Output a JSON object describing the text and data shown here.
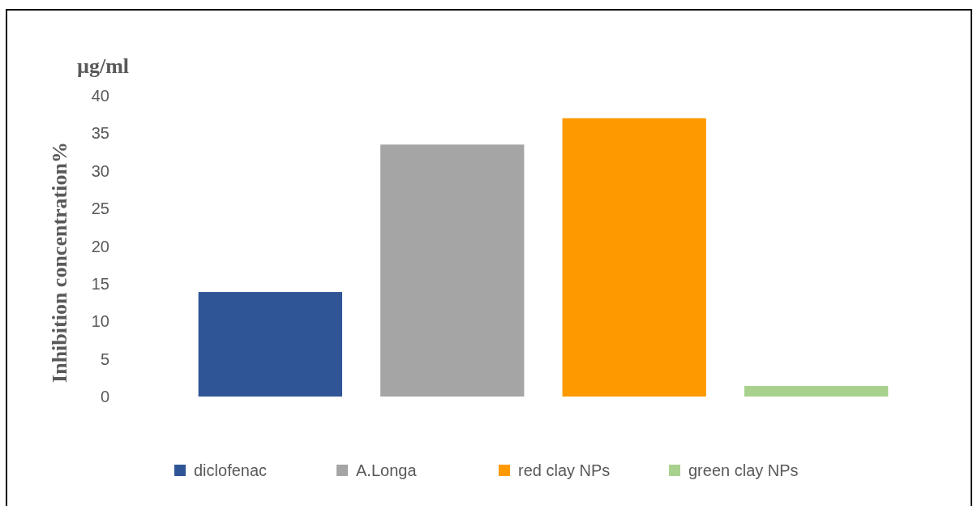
{
  "chart_data": {
    "type": "bar",
    "ylabel": "Inhibition  concentration%",
    "annotations": [
      "µg/ml"
    ],
    "categories": [
      null
    ],
    "series": [
      {
        "name": "diclofenac",
        "color": "#2f5597",
        "values": [
          13.9
        ]
      },
      {
        "name": "A.Longa",
        "color": "#a5a5a5",
        "values": [
          33.5
        ]
      },
      {
        "name": "red clay NPs",
        "color": "#ff9900",
        "values": [
          37.0
        ]
      },
      {
        "name": "green clay  NPs",
        "color": "#a9d18e",
        "values": [
          1.4
        ]
      }
    ],
    "ylim": [
      0,
      40
    ],
    "yticks": [
      0,
      5,
      10,
      15,
      20,
      25,
      30,
      35,
      40
    ],
    "grid": false,
    "legend": "bottom"
  }
}
